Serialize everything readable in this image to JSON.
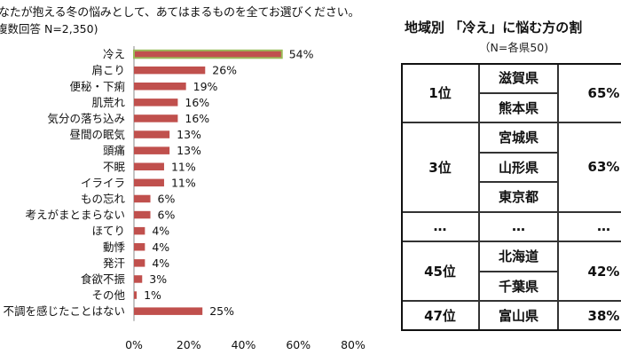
{
  "chart_data": {
    "type": "bar",
    "orientation": "horizontal",
    "title": "なたが抱える冬の悩みとして、あてはまるものを全てお選びください。",
    "note": "複数回答 N=2,350)",
    "categories": [
      "冷え",
      "肩こり",
      "便秘・下痢",
      "肌荒れ",
      "気分の落ち込み",
      "昼間の眠気",
      "頭痛",
      "不眠",
      "イライラ",
      "もの忘れ",
      "考えがまとまらない",
      "ほてり",
      "動悸",
      "発汗",
      "食欲不振",
      "その他",
      "不調を感じたことはない"
    ],
    "values": [
      54,
      26,
      19,
      16,
      16,
      13,
      13,
      11,
      11,
      6,
      6,
      4,
      4,
      4,
      3,
      1,
      25
    ],
    "value_labels": [
      "54%",
      "26%",
      "19%",
      "16%",
      "16%",
      "13%",
      "13%",
      "11%",
      "11%",
      "6%",
      "6%",
      "4%",
      "4%",
      "4%",
      "3%",
      "1%",
      "25%"
    ],
    "xlim": [
      0,
      80
    ],
    "xticks": [
      "0%",
      "20%",
      "40%",
      "60%",
      "80%"
    ],
    "colors": {
      "bar": "#c0504d",
      "highlight": "#9bbb59"
    },
    "highlight_index": 0
  },
  "ranking": {
    "title": "地域別 「冷え」に悩む方の割",
    "subtitle": "（N=各県50)",
    "groups": [
      {
        "rank": "1位",
        "prefs": [
          "滋賀県",
          "熊本県"
        ],
        "value": "65%"
      },
      {
        "rank": "3位",
        "prefs": [
          "宮城県",
          "山形県",
          "東京都"
        ],
        "value": "63%"
      },
      {
        "rank": "…",
        "prefs": [
          "…"
        ],
        "value": "…"
      },
      {
        "rank": "45位",
        "prefs": [
          "北海道",
          "千葉県"
        ],
        "value": "42%"
      },
      {
        "rank": "47位",
        "prefs": [
          "富山県"
        ],
        "value": "38%"
      }
    ]
  }
}
